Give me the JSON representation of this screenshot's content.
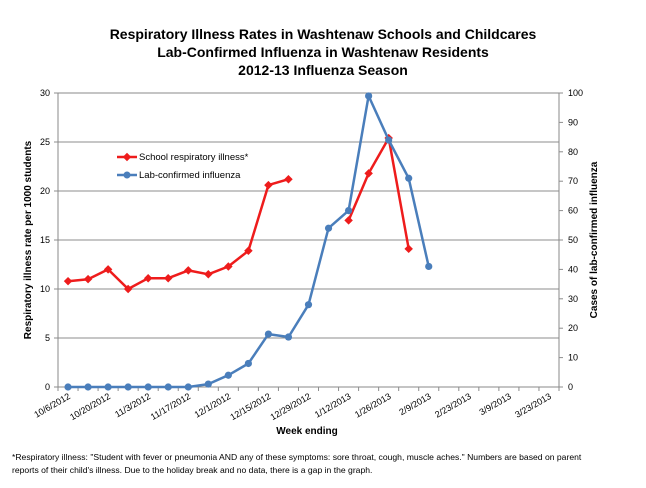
{
  "chart_data": {
    "type": "line",
    "title": [
      "Respiratory Illness Rates in Washtenaw Schools and Childcares",
      "Lab-Confirmed Influenza in Washtenaw Residents",
      "2012-13 Influenza Season"
    ],
    "xlabel": "Week ending",
    "ylabel_left": "Respiratory illness rate per 1000 students",
    "ylabel_right": "Cases of lab-confirmed influenza",
    "ylim_left": [
      0,
      30
    ],
    "ylim_right": [
      0,
      100
    ],
    "yticks_left": [
      "0",
      "5",
      "10",
      "15",
      "20",
      "25",
      "30"
    ],
    "yticks_right": [
      "0",
      "10",
      "20",
      "30",
      "40",
      "50",
      "60",
      "70",
      "80",
      "90",
      "100"
    ],
    "xtick_labels": [
      "10/6/2012",
      "10/20/2012",
      "11/3/2012",
      "11/17/2012",
      "12/1/2012",
      "12/15/2012",
      "12/29/2012",
      "1/12/2013",
      "1/26/2013",
      "2/9/2013",
      "2/23/2013",
      "3/9/2013",
      "3/23/2013"
    ],
    "x_weeks": [
      "10/6/2012",
      "10/13/2012",
      "10/20/2012",
      "10/27/2012",
      "11/3/2012",
      "11/10/2012",
      "11/17/2012",
      "11/24/2012",
      "12/1/2012",
      "12/8/2012",
      "12/15/2012",
      "12/22/2012",
      "12/29/2012",
      "1/5/2013",
      "1/12/2013",
      "1/19/2013",
      "1/26/2013",
      "2/2/2013",
      "2/9/2013",
      "2/16/2013",
      "2/23/2013",
      "3/2/2013",
      "3/9/2013",
      "3/16/2013",
      "3/23/2013"
    ],
    "grid": "horizontal",
    "legend_position": "upper-left",
    "series": [
      {
        "name": "School respiratory illness*",
        "axis": "left",
        "color": "#ee1c1c",
        "marker": "diamond",
        "values": [
          10.8,
          11.0,
          12.0,
          10.0,
          11.1,
          11.1,
          11.9,
          11.5,
          12.3,
          13.9,
          20.6,
          21.2,
          null,
          null,
          17.0,
          21.8,
          25.4,
          14.1,
          null,
          null,
          null,
          null,
          null,
          null,
          null
        ]
      },
      {
        "name": "Lab-confirmed influenza",
        "axis": "right",
        "color": "#4a7ebb",
        "marker": "circle",
        "values": [
          0,
          0,
          0,
          0,
          0,
          0,
          0,
          1,
          4,
          8,
          18,
          17,
          28,
          54,
          60,
          99,
          84,
          71,
          41,
          null,
          null,
          null,
          null,
          null,
          null
        ]
      }
    ]
  },
  "footnote": {
    "line1": "*Respiratory illness: \"Student with fever or pneumonia AND any of these symptoms: sore throat, cough, muscle aches.\" Numbers are based on parent",
    "line2": "reports of their child's illness. Due to the  holiday break and no data, there is a gap in the graph."
  }
}
